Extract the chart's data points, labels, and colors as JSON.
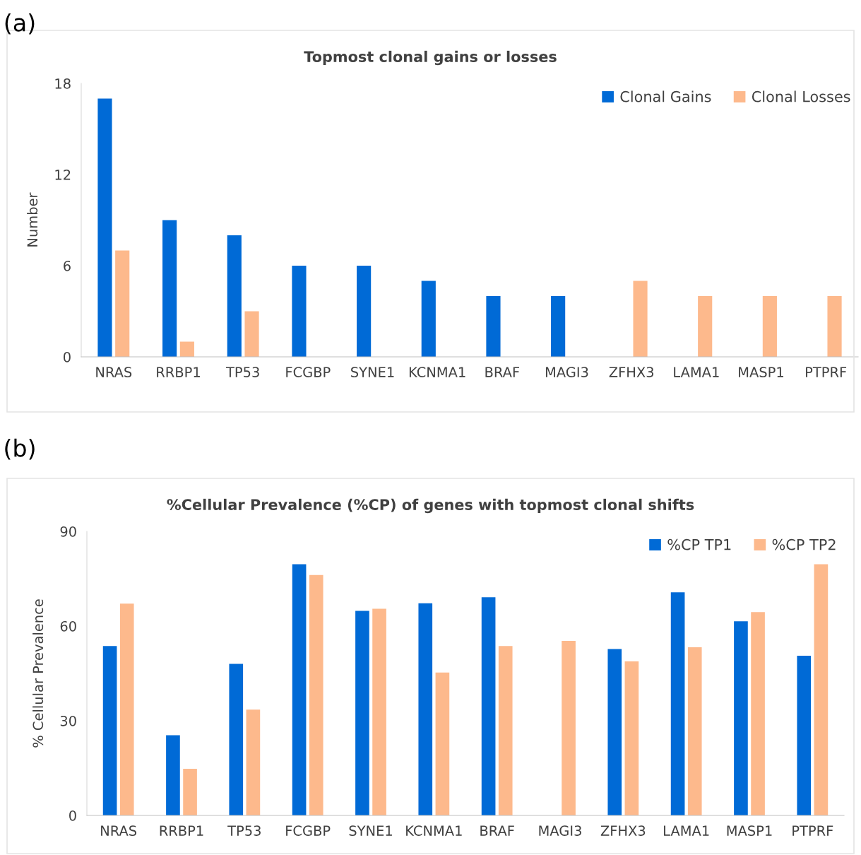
{
  "chart_data": [
    {
      "type": "bar",
      "title": "Topmost clonal gains or losses",
      "ylabel": "Number",
      "annotations": [
        "(a)"
      ],
      "categories": [
        "NRAS",
        "RRBP1",
        "TP53",
        "FCGBP",
        "SYNE1",
        "KCNMA1",
        "BRAF",
        "MAGI3",
        "ZFHX3",
        "LAMA1",
        "MASP1",
        "PTPRF"
      ],
      "series": [
        {
          "name": "Clonal Gains",
          "color": "#006ad6",
          "values": [
            17,
            9,
            8,
            6,
            6,
            5,
            4,
            4,
            null,
            null,
            null,
            null
          ]
        },
        {
          "name": "Clonal Losses",
          "color": "#fdb98c",
          "values": [
            7,
            1,
            3,
            null,
            null,
            null,
            null,
            null,
            5,
            4,
            4,
            4
          ]
        }
      ],
      "ylim": [
        0,
        18
      ],
      "yticks": [
        0,
        6,
        12,
        18
      ],
      "grid": false,
      "legend": "top right"
    },
    {
      "type": "bar",
      "title": "%Cellular Prevalence (%CP) of genes with topmost clonal shifts",
      "ylabel": "% Cellular Prevalence",
      "annotations": [
        "(b)"
      ],
      "categories": [
        "NRAS",
        "RRBP1",
        "TP53",
        "FCGBP",
        "SYNE1",
        "KCNMA1",
        "BRAF",
        "MAGI3",
        "ZFHX3",
        "LAMA1",
        "MASP1",
        "PTPRF"
      ],
      "series": [
        {
          "name": "%CP TP1",
          "color": "#006ad6",
          "values": [
            53.7,
            25.4,
            48.0,
            79.6,
            64.8,
            67.2,
            69.1,
            null,
            52.7,
            70.7,
            61.5,
            50.6
          ]
        },
        {
          "name": "%CP TP2",
          "color": "#fdb98c",
          "values": [
            67.1,
            14.8,
            33.5,
            76.2,
            65.5,
            45.3,
            53.7,
            55.3,
            48.8,
            53.3,
            64.4,
            79.6
          ]
        }
      ],
      "ylim": [
        0,
        90
      ],
      "yticks": [
        0,
        30,
        60,
        90
      ],
      "grid": false,
      "legend": "top right"
    }
  ]
}
